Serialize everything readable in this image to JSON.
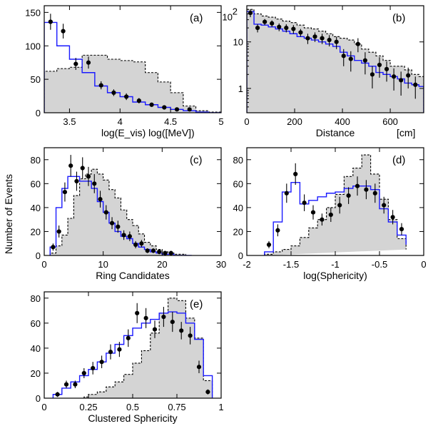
{
  "figure": {
    "ylabel_shared": "Number of Events"
  },
  "chart_data": [
    {
      "id": "a",
      "panel_label": "(a)",
      "type": "bar",
      "xlabel": "log(E_vis)  log([MeV])",
      "xlim": [
        3.25,
        5.0
      ],
      "ylim": [
        0,
        160
      ],
      "ylog": false,
      "xticks": [
        3.5,
        4,
        4.5,
        5
      ],
      "xtick_labels": [
        "3.5",
        "4",
        "4.5",
        "5"
      ],
      "yticks": [
        0,
        50,
        100,
        150
      ],
      "ytick_labels": [
        "0",
        "50",
        "100",
        "150"
      ],
      "series": [
        {
          "kind": "filled_dashed_histogram",
          "edges": [
            3.25,
            3.375,
            3.5,
            3.625,
            3.75,
            3.875,
            4.0,
            4.125,
            4.25,
            4.375,
            4.5,
            4.625,
            4.75,
            4.875,
            5.0
          ],
          "values": [
            62,
            66,
            68,
            86,
            86,
            80,
            78,
            76,
            60,
            46,
            30,
            10,
            3,
            1
          ]
        },
        {
          "kind": "line_histogram",
          "edges": [
            3.25,
            3.375,
            3.5,
            3.625,
            3.75,
            3.875,
            4.0,
            4.125,
            4.25,
            4.375,
            4.5,
            4.625,
            4.75,
            4.875,
            5.0
          ],
          "values": [
            135,
            100,
            80,
            60,
            40,
            30,
            24,
            16,
            12,
            8,
            5,
            3,
            1,
            0
          ]
        },
        {
          "kind": "data_points",
          "x": [
            3.3125,
            3.4375,
            3.5625,
            3.6875,
            3.8125,
            3.9375,
            4.0625,
            4.1875,
            4.3125,
            4.4375,
            4.5625,
            4.6875
          ],
          "y": [
            136,
            122,
            73,
            75,
            41,
            30,
            24,
            18,
            12,
            8,
            5,
            5
          ],
          "err": [
            12,
            11,
            9,
            9,
            6,
            5,
            5,
            4,
            3,
            3,
            2,
            2
          ]
        }
      ]
    },
    {
      "id": "b",
      "panel_label": "(b)",
      "type": "bar",
      "xlabel": "Distance",
      "xunit": "[cm]",
      "xlim": [
        0,
        740
      ],
      "ylim": [
        0.3,
        60
      ],
      "ylog": true,
      "xticks": [
        0,
        200,
        400,
        600
      ],
      "xtick_labels": [
        "0",
        "200",
        "400",
        "600"
      ],
      "yticks": [
        1,
        10
      ],
      "ytick_labels": [
        "1",
        "10"
      ],
      "ytop_label": "2",
      "ytop_prefix": "10",
      "series": [
        {
          "kind": "filled_dashed_histogram",
          "edges": [
            0,
            30,
            60,
            90,
            120,
            150,
            180,
            210,
            240,
            270,
            300,
            330,
            360,
            390,
            420,
            450,
            480,
            510,
            540,
            570,
            600,
            630,
            660,
            690,
            720,
            740
          ],
          "values": [
            50,
            40,
            36,
            34,
            31,
            28,
            26,
            23,
            20,
            19,
            17,
            15,
            13,
            12,
            11,
            9,
            7,
            6,
            5,
            4,
            3,
            3,
            2.5,
            2,
            1.8
          ]
        },
        {
          "kind": "line_histogram",
          "edges": [
            0,
            30,
            60,
            90,
            120,
            150,
            180,
            210,
            240,
            270,
            300,
            330,
            360,
            390,
            420,
            450,
            480,
            510,
            540,
            570,
            600,
            630,
            660,
            690,
            720,
            740
          ],
          "values": [
            45,
            24,
            23,
            21,
            19,
            17,
            15,
            13,
            12,
            11,
            10,
            9,
            8,
            6,
            5,
            4,
            3.5,
            3,
            2.2,
            2,
            1.8,
            1.6,
            1.3,
            1.2,
            1.1
          ]
        },
        {
          "kind": "data_points",
          "x": [
            15,
            45,
            75,
            105,
            135,
            165,
            195,
            225,
            255,
            285,
            315,
            345,
            375,
            405,
            435,
            465,
            495,
            525,
            555,
            585,
            615,
            645,
            675,
            705
          ],
          "y": [
            42,
            20,
            27,
            25,
            21,
            20,
            19,
            16,
            12,
            13,
            12,
            11,
            10,
            5,
            4.3,
            9,
            4,
            2,
            3.2,
            2.6,
            1.8,
            1.5,
            1.9,
            1.2
          ],
          "err": [
            8,
            4,
            4,
            4,
            4,
            4,
            4,
            3,
            3,
            3,
            3,
            3,
            3,
            2,
            2,
            3,
            2,
            1,
            1.5,
            1.2,
            0.9,
            0.8,
            0.9,
            0.6
          ]
        }
      ]
    },
    {
      "id": "c",
      "panel_label": "(c)",
      "type": "bar",
      "xlabel": "Ring Candidates",
      "xlim": [
        0,
        30
      ],
      "ylim": [
        0,
        90
      ],
      "ylog": false,
      "xticks": [
        0,
        10,
        20,
        30
      ],
      "xtick_labels": [
        "0",
        "10",
        "20",
        "30"
      ],
      "yticks": [
        0,
        20,
        40,
        60,
        80
      ],
      "ytick_labels": [
        "0",
        "20",
        "40",
        "60",
        "80"
      ],
      "series": [
        {
          "kind": "filled_dashed_histogram",
          "edges": [
            1,
            2,
            3,
            4,
            5,
            6,
            7,
            8,
            9,
            10,
            11,
            12,
            13,
            14,
            15,
            16,
            17,
            18,
            19,
            20,
            21,
            22,
            23,
            24,
            25
          ],
          "values": [
            2,
            8,
            17,
            31,
            50,
            64,
            68,
            72,
            68,
            63,
            55,
            48,
            38,
            30,
            25,
            18,
            11,
            8,
            5,
            3,
            2,
            1,
            1,
            0
          ]
        },
        {
          "kind": "line_histogram",
          "edges": [
            1,
            2,
            3,
            4,
            5,
            6,
            7,
            8,
            9,
            10,
            11,
            12,
            13,
            14,
            15,
            16,
            17,
            18,
            19,
            20,
            21,
            22,
            23,
            24,
            25
          ],
          "values": [
            7,
            40,
            56,
            66,
            66,
            62,
            62,
            56,
            45,
            36,
            27,
            20,
            16,
            14,
            10,
            7,
            5,
            3,
            2,
            1,
            1,
            0,
            0,
            0
          ]
        },
        {
          "kind": "data_points",
          "x": [
            1.5,
            2.5,
            3.5,
            4.5,
            5.5,
            6.5,
            7.5,
            8.5,
            9.5,
            10.5,
            11.5,
            12.5,
            13.5,
            14.5,
            15.5,
            16.5,
            17.5,
            18.5,
            19.5,
            20.5,
            21.5
          ],
          "y": [
            7,
            20,
            53,
            75,
            62,
            73,
            66,
            60,
            47,
            36,
            27,
            24,
            17,
            16,
            9,
            10,
            4,
            4,
            3,
            2,
            2
          ],
          "err": [
            3,
            5,
            8,
            9,
            8,
            9,
            8,
            8,
            7,
            6,
            5,
            5,
            4,
            4,
            3,
            3,
            2,
            2,
            2,
            1.5,
            1.5
          ]
        }
      ]
    },
    {
      "id": "d",
      "panel_label": "(d)",
      "type": "bar",
      "xlabel": "log(Sphericity)",
      "xlim": [
        -2,
        0
      ],
      "ylim": [
        0,
        90
      ],
      "ylog": false,
      "xticks": [
        -2,
        -1.5,
        -1,
        -0.5,
        0
      ],
      "xtick_labels": [
        "-2",
        "-1.5",
        "-1",
        "-0.5",
        "0"
      ],
      "yticks": [
        0,
        20,
        40,
        60,
        80
      ],
      "ytick_labels": [
        "0",
        "20",
        "40",
        "60",
        "80"
      ],
      "series": [
        {
          "kind": "filled_dashed_histogram",
          "edges": [
            -1.8,
            -1.7,
            -1.6,
            -1.5,
            -1.4,
            -1.3,
            -1.2,
            -1.1,
            -1.0,
            -0.9,
            -0.8,
            -0.7,
            -0.6,
            -0.5,
            -0.4,
            -0.3,
            -0.2
          ],
          "values": [
            1,
            3,
            5,
            8,
            15,
            23,
            30,
            40,
            51,
            66,
            73,
            84,
            68,
            47,
            30,
            14,
            5
          ]
        },
        {
          "kind": "line_histogram",
          "edges": [
            -1.8,
            -1.7,
            -1.6,
            -1.5,
            -1.4,
            -1.3,
            -1.2,
            -1.1,
            -1.0,
            -0.9,
            -0.8,
            -0.7,
            -0.6,
            -0.5,
            -0.4,
            -0.3,
            -0.2
          ],
          "values": [
            3,
            28,
            53,
            61,
            43,
            46,
            49,
            52,
            53,
            56,
            58,
            58,
            55,
            39,
            28,
            17,
            9
          ]
        },
        {
          "kind": "data_points",
          "x": [
            -1.75,
            -1.65,
            -1.55,
            -1.45,
            -1.35,
            -1.25,
            -1.15,
            -1.05,
            -0.95,
            -0.85,
            -0.75,
            -0.65,
            -0.55,
            -0.45,
            -0.35,
            -0.25
          ],
          "y": [
            9,
            21,
            52,
            68,
            44,
            36,
            30,
            34,
            42,
            50,
            58,
            55,
            52,
            42,
            32,
            22
          ],
          "err": [
            3,
            5,
            8,
            9,
            7,
            6,
            5,
            6,
            7,
            7,
            8,
            8,
            8,
            7,
            6,
            5
          ]
        }
      ]
    },
    {
      "id": "e",
      "panel_label": "(e)",
      "type": "bar",
      "xlabel": "Clustered Sphericity",
      "xlim": [
        0,
        1
      ],
      "ylim": [
        0,
        85
      ],
      "ylog": false,
      "xticks": [
        0,
        0.25,
        0.5,
        0.75,
        1
      ],
      "xtick_labels": [
        "0",
        "0.25",
        "0.5",
        "0.75",
        "1"
      ],
      "yticks": [
        0,
        20,
        40,
        60,
        80
      ],
      "ytick_labels": [
        "0",
        "20",
        "40",
        "60",
        "80"
      ],
      "series": [
        {
          "kind": "filled_dashed_histogram",
          "edges": [
            0.225,
            0.25,
            0.3,
            0.35,
            0.4,
            0.45,
            0.5,
            0.55,
            0.6,
            0.65,
            0.7,
            0.75,
            0.8,
            0.85,
            0.9,
            0.95
          ],
          "values": [
            1,
            3,
            5,
            9,
            13,
            19,
            28,
            38,
            52,
            68,
            80,
            78,
            64,
            48,
            14
          ]
        },
        {
          "kind": "line_histogram",
          "edges": [
            0.05,
            0.1,
            0.15,
            0.2,
            0.25,
            0.3,
            0.35,
            0.4,
            0.45,
            0.5,
            0.55,
            0.6,
            0.65,
            0.7,
            0.75,
            0.8,
            0.85,
            0.9,
            0.95
          ],
          "values": [
            3,
            8,
            13,
            18,
            23,
            29,
            36,
            43,
            50,
            56,
            60,
            63,
            68,
            69,
            68,
            60,
            47,
            18
          ]
        },
        {
          "kind": "data_points",
          "x": [
            0.075,
            0.125,
            0.175,
            0.225,
            0.275,
            0.325,
            0.375,
            0.425,
            0.475,
            0.525,
            0.575,
            0.625,
            0.675,
            0.725,
            0.775,
            0.825,
            0.875,
            0.925
          ],
          "y": [
            3,
            11,
            11,
            20,
            24,
            29,
            37,
            39,
            48,
            68,
            64,
            55,
            65,
            61,
            54,
            50,
            25,
            5
          ],
          "err": [
            2,
            3,
            3,
            4,
            5,
            5,
            6,
            6,
            7,
            8,
            8,
            7,
            8,
            8,
            7,
            7,
            5,
            2
          ]
        }
      ]
    }
  ]
}
